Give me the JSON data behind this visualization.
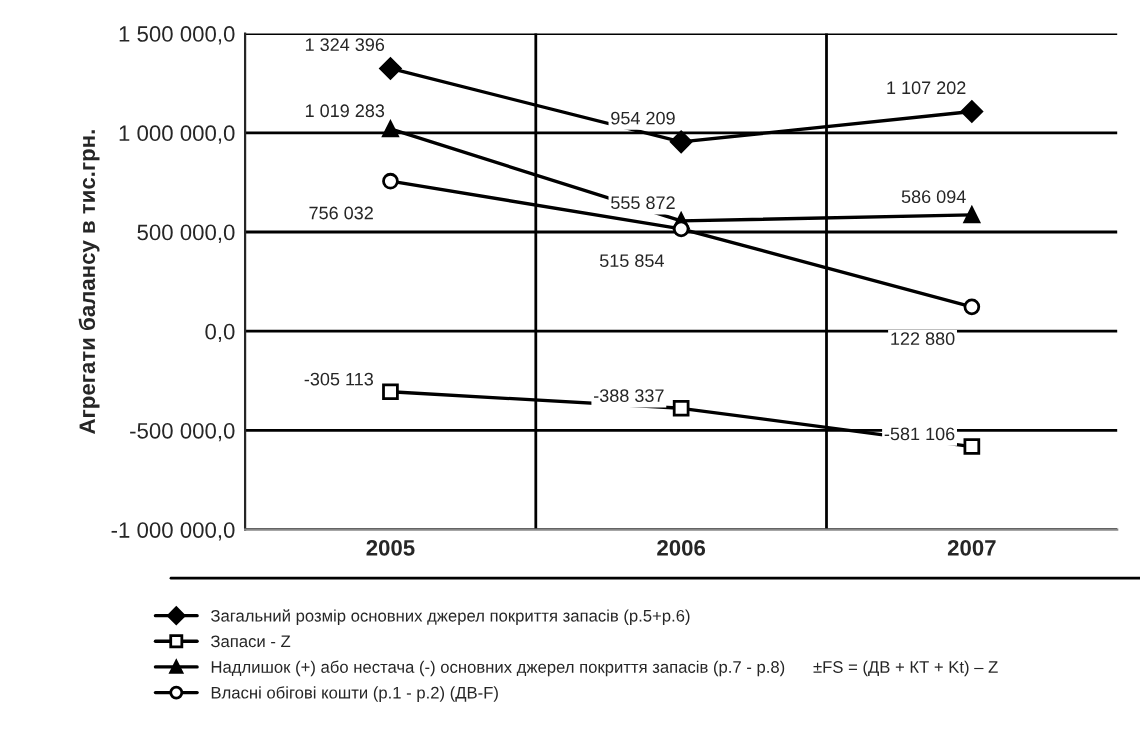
{
  "chart_data": {
    "type": "line",
    "ylabel": "Агрегати балансу в тис.грн.",
    "categories": [
      "2005",
      "2006",
      "2007"
    ],
    "series": [
      {
        "name": "Загальний розмір основних джерел покриття запасів (р.5+р.6)",
        "color": "#000000",
        "marker": "diamond",
        "values": [
          1324396,
          954209,
          1107202
        ],
        "value_labels": [
          "1 324 396",
          "954 209",
          "1 107 202"
        ]
      },
      {
        "name": "Запаси - Z",
        "color": "#000000",
        "marker": "square",
        "values": [
          -305113,
          -388337,
          -581106
        ],
        "value_labels": [
          "-305 113",
          "-388 337",
          "-581 106"
        ]
      },
      {
        "name": "Надлишок (+) або нестача (-) основних джерел покриття запасів (р.7 - р.8)      ±FS = (ДВ + КТ + Kt) – Z",
        "color": "#000000",
        "marker": "triangle",
        "values": [
          1019283,
          555872,
          586094
        ],
        "value_labels": [
          "1 019 283",
          "555 872",
          "586 094"
        ]
      },
      {
        "name": "Власні обігові кошти (р.1 - р.2) (ДВ-F)",
        "color": "#000000",
        "marker": "circle",
        "values": [
          756032,
          515854,
          122880
        ],
        "value_labels": [
          "756 032",
          "515 854",
          "122 880"
        ]
      }
    ],
    "ylim": [
      -1000000,
      1500000
    ],
    "yticks": [
      {
        "value": -1000000,
        "label": "-1 000 000,0"
      },
      {
        "value": -500000,
        "label": "-500 000,0"
      },
      {
        "value": 0,
        "label": "0,0"
      },
      {
        "value": 500000,
        "label": "500 000,0"
      },
      {
        "value": 1000000,
        "label": "1 000 000,0"
      },
      {
        "value": 1500000,
        "label": "1 500 000,0"
      }
    ],
    "grid": true,
    "legend": "bottom",
    "line_style": "solid"
  }
}
